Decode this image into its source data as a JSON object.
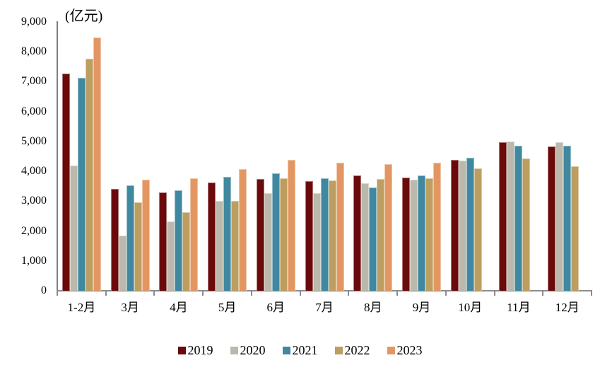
{
  "title_unit": "(亿元)",
  "chart_data": {
    "type": "bar",
    "title": "",
    "ylabel": "(亿元)",
    "xlabel": "",
    "ylim": [
      0,
      9000
    ],
    "yticks": [
      0,
      1000,
      2000,
      3000,
      4000,
      5000,
      6000,
      7000,
      8000,
      9000
    ],
    "grid": false,
    "legend_position": "bottom",
    "categories": [
      "1-2月",
      "3月",
      "4月",
      "5月",
      "6月",
      "7月",
      "8月",
      "9月",
      "10月",
      "11月",
      "12月"
    ],
    "series": [
      {
        "name": "2019",
        "color": "#6B0A0A",
        "values": [
          7280,
          3400,
          3300,
          3630,
          3740,
          3670,
          3870,
          3780,
          4380,
          4970,
          4830
        ]
      },
      {
        "name": "2020",
        "color": "#BAB9AB",
        "values": [
          4200,
          1850,
          2320,
          3020,
          3270,
          3280,
          3600,
          3710,
          4360,
          5000,
          4980
        ]
      },
      {
        "name": "2021",
        "color": "#3F88A0",
        "values": [
          7130,
          3530,
          3370,
          3820,
          3930,
          3760,
          3470,
          3850,
          4450,
          4860,
          4860
        ]
      },
      {
        "name": "2022",
        "color": "#BD9E60",
        "values": [
          7760,
          2950,
          2620,
          3000,
          3770,
          3700,
          3750,
          3770,
          4090,
          4440,
          4160
        ]
      },
      {
        "name": "2023",
        "color": "#E29763",
        "values": [
          8480,
          3730,
          3770,
          4070,
          4380,
          4290,
          4230,
          4290,
          null,
          null,
          null
        ]
      }
    ]
  }
}
